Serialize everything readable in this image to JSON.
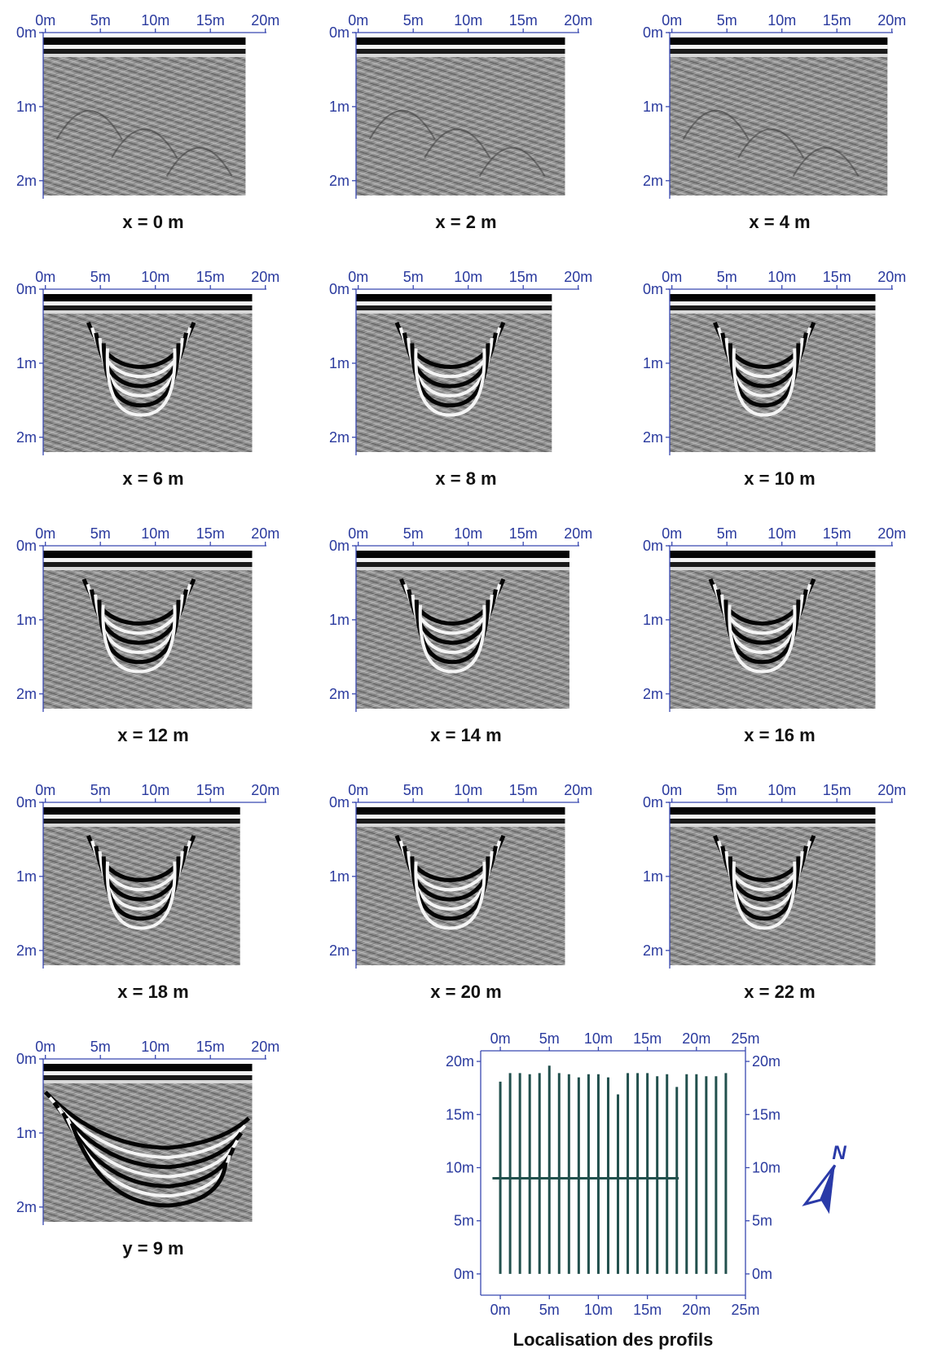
{
  "chart_data": [
    {
      "type": "heatmap",
      "title": "x = 0 m",
      "xticks": [
        "0m",
        "5m",
        "10m",
        "15m",
        "20m"
      ],
      "yticks": [
        "0m",
        "1m",
        "2m"
      ],
      "xlim": [
        0,
        20
      ],
      "ylim": [
        0,
        2.2
      ],
      "survey_extent_m": 18.2
    },
    {
      "type": "heatmap",
      "title": "x = 2 m",
      "xticks": [
        "0m",
        "5m",
        "10m",
        "15m",
        "20m"
      ],
      "yticks": [
        "0m",
        "1m",
        "2m"
      ],
      "xlim": [
        0,
        20
      ],
      "ylim": [
        0,
        2.2
      ],
      "survey_extent_m": 18.8
    },
    {
      "type": "heatmap",
      "title": "x = 4 m",
      "xticks": [
        "0m",
        "5m",
        "10m",
        "15m",
        "20m"
      ],
      "yticks": [
        "0m",
        "1m",
        "2m"
      ],
      "xlim": [
        0,
        20
      ],
      "ylim": [
        0,
        2.2
      ],
      "survey_extent_m": 19.6
    },
    {
      "type": "heatmap",
      "title": "x = 6 m",
      "xticks": [
        "0m",
        "5m",
        "10m",
        "15m",
        "20m"
      ],
      "yticks": [
        "0m",
        "1m",
        "2m"
      ],
      "xlim": [
        0,
        20
      ],
      "ylim": [
        0,
        2.2
      ],
      "survey_extent_m": 18.8
    },
    {
      "type": "heatmap",
      "title": "x = 8 m",
      "xticks": [
        "0m",
        "5m",
        "10m",
        "15m",
        "20m"
      ],
      "yticks": [
        "0m",
        "1m",
        "2m"
      ],
      "xlim": [
        0,
        20
      ],
      "ylim": [
        0,
        2.2
      ],
      "survey_extent_m": 17.6
    },
    {
      "type": "heatmap",
      "title": "x = 10 m",
      "xticks": [
        "0m",
        "5m",
        "10m",
        "15m",
        "20m"
      ],
      "yticks": [
        "0m",
        "1m",
        "2m"
      ],
      "xlim": [
        0,
        20
      ],
      "ylim": [
        0,
        2.2
      ],
      "survey_extent_m": 18.5
    },
    {
      "type": "heatmap",
      "title": "x = 12 m",
      "xticks": [
        "0m",
        "5m",
        "10m",
        "15m",
        "20m"
      ],
      "yticks": [
        "0m",
        "1m",
        "2m"
      ],
      "xlim": [
        0,
        20
      ],
      "ylim": [
        0,
        2.2
      ],
      "survey_extent_m": 18.8
    },
    {
      "type": "heatmap",
      "title": "x = 14 m",
      "xticks": [
        "0m",
        "5m",
        "10m",
        "15m",
        "20m"
      ],
      "yticks": [
        "0m",
        "1m",
        "2m"
      ],
      "xlim": [
        0,
        20
      ],
      "ylim": [
        0,
        2.2
      ],
      "survey_extent_m": 19.2
    },
    {
      "type": "heatmap",
      "title": "x = 16 m",
      "xticks": [
        "0m",
        "5m",
        "10m",
        "15m",
        "20m"
      ],
      "yticks": [
        "0m",
        "1m",
        "2m"
      ],
      "xlim": [
        0,
        20
      ],
      "ylim": [
        0,
        2.2
      ],
      "survey_extent_m": 18.5
    },
    {
      "type": "heatmap",
      "title": "x = 18 m",
      "xticks": [
        "0m",
        "5m",
        "10m",
        "15m",
        "20m"
      ],
      "yticks": [
        "0m",
        "1m",
        "2m"
      ],
      "xlim": [
        0,
        20
      ],
      "ylim": [
        0,
        2.2
      ],
      "survey_extent_m": 17.7
    },
    {
      "type": "heatmap",
      "title": "x = 20 m",
      "xticks": [
        "0m",
        "5m",
        "10m",
        "15m",
        "20m"
      ],
      "yticks": [
        "0m",
        "1m",
        "2m"
      ],
      "xlim": [
        0,
        20
      ],
      "ylim": [
        0,
        2.2
      ],
      "survey_extent_m": 18.8
    },
    {
      "type": "heatmap",
      "title": "x = 22 m",
      "xticks": [
        "0m",
        "5m",
        "10m",
        "15m",
        "20m"
      ],
      "yticks": [
        "0m",
        "1m",
        "2m"
      ],
      "xlim": [
        0,
        20
      ],
      "ylim": [
        0,
        2.2
      ],
      "survey_extent_m": 18.5
    },
    {
      "type": "heatmap",
      "title": "y = 9 m",
      "xticks": [
        "0m",
        "5m",
        "10m",
        "15m",
        "20m"
      ],
      "yticks": [
        "0m",
        "1m",
        "2m"
      ],
      "xlim": [
        0,
        20
      ],
      "ylim": [
        0,
        2.2
      ],
      "survey_extent_m": 18.8
    },
    {
      "type": "line",
      "title": "Localisation des profils",
      "xticks": [
        "0m",
        "5m",
        "10m",
        "15m",
        "20m",
        "25m"
      ],
      "yticks": [
        "0m",
        "5m",
        "10m",
        "15m",
        "20m"
      ],
      "xlim": [
        -2,
        25
      ],
      "ylim": [
        -2,
        21
      ],
      "profiles_x": [
        0,
        1,
        2,
        3,
        4,
        5,
        6,
        7,
        8,
        9,
        10,
        11,
        12,
        13,
        14,
        15,
        16,
        17,
        18,
        19,
        20,
        21,
        22,
        23
      ],
      "profiles_y_top": [
        18.1,
        18.9,
        18.9,
        18.8,
        18.9,
        19.6,
        18.9,
        18.8,
        18.5,
        18.8,
        18.8,
        18.5,
        16.9,
        18.9,
        18.9,
        18.9,
        18.6,
        18.8,
        17.6,
        18.8,
        18.8,
        18.6,
        18.6,
        18.9
      ],
      "crossline": {
        "y": 9,
        "x_start": -0.8,
        "x_end": 18.2
      },
      "north_label": "N"
    }
  ]
}
